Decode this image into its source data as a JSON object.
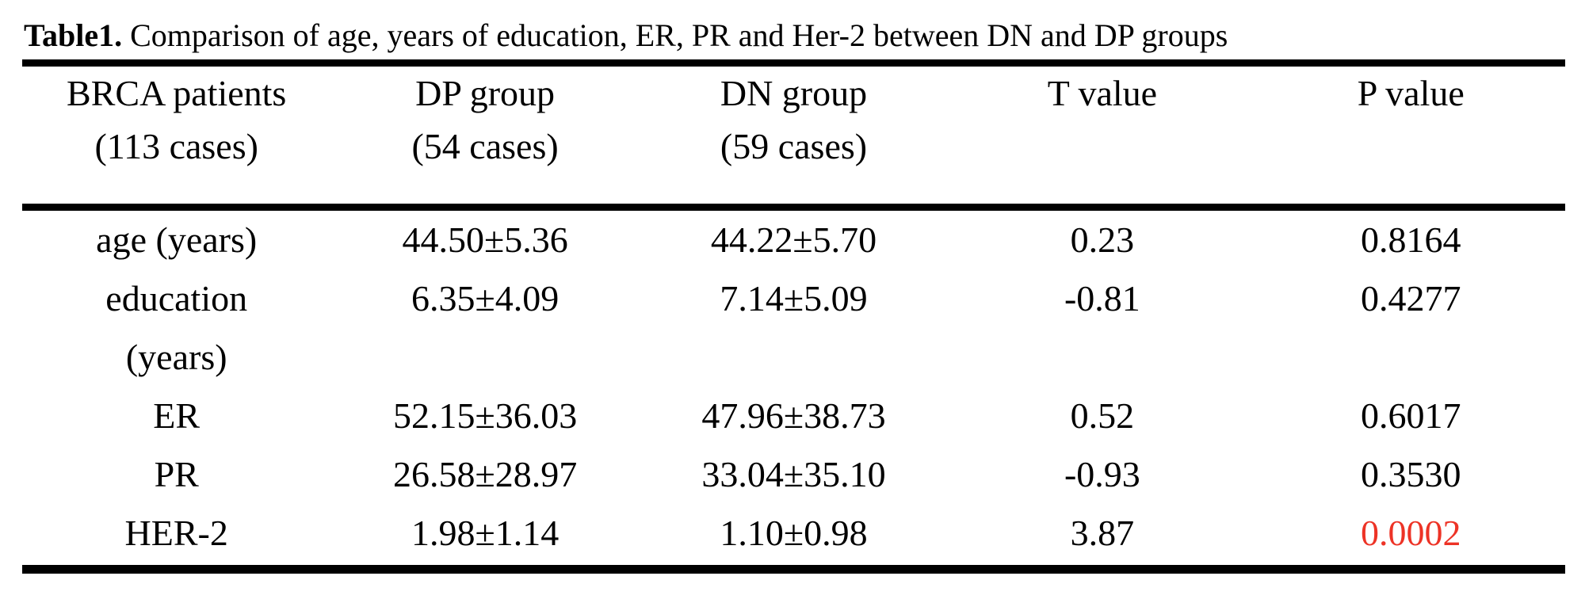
{
  "colors": {
    "background": "#ffffff",
    "text": "#000000",
    "rule": "#000000",
    "highlight_red": "#ed3326"
  },
  "title": {
    "prefix": "Table1.",
    "text": "Comparison of age, years of education, ER, PR and Her-2 between DN and DP groups"
  },
  "table": {
    "columns": [
      {
        "line1": "BRCA patients",
        "line2": "(113 cases)"
      },
      {
        "line1": "DP group",
        "line2": "(54 cases)"
      },
      {
        "line1": "DN group",
        "line2": "(59 cases)"
      },
      {
        "line1": "T value",
        "line2": ""
      },
      {
        "line1": "P value",
        "line2": ""
      }
    ],
    "rows": [
      {
        "label_line1": "age (years)",
        "label_line2": "",
        "dp": "44.50±5.36",
        "dn": "44.22±5.70",
        "t": "0.23",
        "p": "0.8164",
        "p_highlight": false
      },
      {
        "label_line1": "education",
        "label_line2": "(years)",
        "dp": "6.35±4.09",
        "dn": "7.14±5.09",
        "t": "-0.81",
        "p": "0.4277",
        "p_highlight": false
      },
      {
        "label_line1": "ER",
        "label_line2": "",
        "dp": "52.15±36.03",
        "dn": "47.96±38.73",
        "t": "0.52",
        "p": "0.6017",
        "p_highlight": false
      },
      {
        "label_line1": "PR",
        "label_line2": "",
        "dp": "26.58±28.97",
        "dn": "33.04±35.10",
        "t": "-0.93",
        "p": "0.3530",
        "p_highlight": false
      },
      {
        "label_line1": "HER-2",
        "label_line2": "",
        "dp": "1.98±1.14",
        "dn": "1.10±0.98",
        "t": "3.87",
        "p": "0.0002",
        "p_highlight": true
      }
    ]
  }
}
